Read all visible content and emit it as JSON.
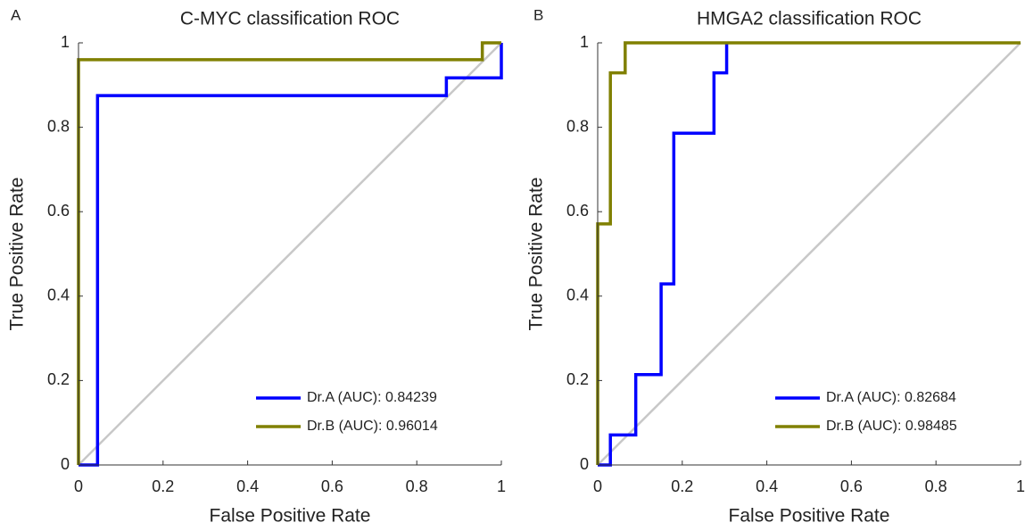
{
  "chart_data": [
    {
      "type": "line",
      "panel_label": "A",
      "title": "C-MYC classification ROC",
      "xlabel": "False Positive Rate",
      "ylabel": "True Positive Rate",
      "xlim": [
        0,
        1
      ],
      "ylim": [
        0,
        1
      ],
      "xticks": [
        0,
        0.2,
        0.4,
        0.6,
        0.8,
        1
      ],
      "yticks": [
        0,
        0.2,
        0.4,
        0.6,
        0.8,
        1
      ],
      "legend": "lower right",
      "reference_line": {
        "x": [
          0,
          1
        ],
        "values": [
          0,
          1
        ],
        "color": "#c8c8c8"
      },
      "series": [
        {
          "name": "Dr.A (AUC): 0.84239",
          "color": "#0000ff",
          "x": [
            0,
            0.045,
            0.045,
            0.87,
            0.87,
            1,
            1
          ],
          "values": [
            0,
            0,
            0.875,
            0.875,
            0.917,
            0.917,
            1
          ]
        },
        {
          "name": "Dr.B (AUC): 0.96014",
          "color": "#808000",
          "x": [
            0,
            0,
            0.955,
            0.955,
            1
          ],
          "values": [
            0,
            0.96,
            0.96,
            1,
            1
          ]
        }
      ]
    },
    {
      "type": "line",
      "panel_label": "B",
      "title": "HMGA2 classification ROC",
      "xlabel": "False Positive Rate",
      "ylabel": "True Positive Rate",
      "xlim": [
        0,
        1
      ],
      "ylim": [
        0,
        1
      ],
      "xticks": [
        0,
        0.2,
        0.4,
        0.6,
        0.8,
        1
      ],
      "yticks": [
        0,
        0.2,
        0.4,
        0.6,
        0.8,
        1
      ],
      "legend": "lower right",
      "reference_line": {
        "x": [
          0,
          1
        ],
        "values": [
          0,
          1
        ],
        "color": "#c8c8c8"
      },
      "series": [
        {
          "name": "Dr.A (AUC): 0.82684",
          "color": "#0000ff",
          "x": [
            0,
            0.03,
            0.03,
            0.09,
            0.09,
            0.15,
            0.15,
            0.18,
            0.18,
            0.275,
            0.275,
            0.305,
            0.305
          ],
          "values": [
            0,
            0,
            0.071,
            0.071,
            0.214,
            0.214,
            0.429,
            0.429,
            0.786,
            0.786,
            0.929,
            0.929,
            1
          ]
        },
        {
          "name": "Dr.B (AUC): 0.98485",
          "color": "#808000",
          "x": [
            0,
            0,
            0.03,
            0.03,
            0.065,
            0.065,
            1
          ],
          "values": [
            0,
            0.571,
            0.571,
            0.929,
            0.929,
            1,
            1
          ]
        }
      ]
    }
  ]
}
